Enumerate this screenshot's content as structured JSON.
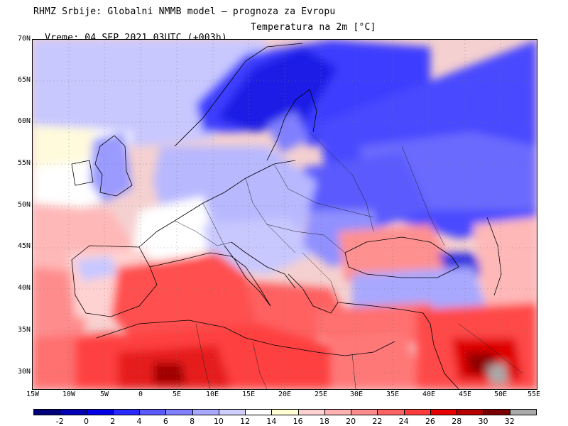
{
  "title": {
    "line1": "RHMZ Srbije: Globalni NMMB model — prognoza za Evropu",
    "line2_time": "Vreme: 04 SEP 2021 03UTC (+003h)",
    "line2_param": "Temperatura na 2m [°C]"
  },
  "map": {
    "region": "Europe",
    "parameter": "2m temperature",
    "unit": "°C",
    "lon_range": [
      -15,
      55
    ],
    "lat_range": [
      28,
      70
    ],
    "lat_ticks": [
      "70N",
      "65N",
      "60N",
      "55N",
      "50N",
      "45N",
      "40N",
      "35N",
      "30N"
    ],
    "lon_ticks": [
      "15W",
      "10W",
      "5W",
      "0",
      "5E",
      "10E",
      "15E",
      "20E",
      "25E",
      "30E",
      "35E",
      "40E",
      "45E",
      "50E",
      "55E"
    ]
  },
  "colorbar": {
    "labels": [
      "-2",
      "0",
      "2",
      "4",
      "6",
      "8",
      "10",
      "12",
      "14",
      "16",
      "18",
      "20",
      "22",
      "24",
      "26",
      "28",
      "30",
      "32"
    ],
    "colors": [
      "#00007a",
      "#0000b4",
      "#0000e6",
      "#2a2aff",
      "#5a5aff",
      "#8080ff",
      "#a8a8ff",
      "#cfcfff",
      "#ffffff",
      "#ffffd2",
      "#ffd2d2",
      "#ffb0b0",
      "#ff8c8c",
      "#ff6464",
      "#ff3c3c",
      "#e60000",
      "#b40000",
      "#7a0000",
      "#aaaaaa"
    ]
  }
}
